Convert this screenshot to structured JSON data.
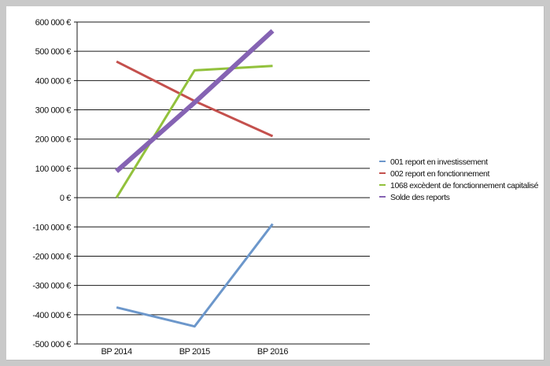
{
  "chart_data": {
    "type": "line",
    "title": "",
    "xlabel": "",
    "ylabel": "",
    "categories": [
      "BP 2014",
      "BP 2015",
      "BP 2016"
    ],
    "ylim": [
      -500000,
      600000
    ],
    "y_ticks": [
      600000,
      500000,
      400000,
      300000,
      200000,
      100000,
      0,
      -100000,
      -200000,
      -300000,
      -400000,
      -500000
    ],
    "y_tick_labels": [
      "600 000 €",
      "500 000 €",
      "400 000 €",
      "300 000 €",
      "200 000 €",
      "100 000 €",
      "0 €",
      "-100 000 €",
      "-200 000 €",
      "-300 000 €",
      "-400 000 €",
      "-500 000 €"
    ],
    "grid": "horizontal",
    "legend_position": "right",
    "series": [
      {
        "name": "001 report en investissement",
        "values": [
          -375000,
          -440000,
          -90000
        ],
        "color": "#6c97cb"
      },
      {
        "name": "002 report en fonctionnement",
        "values": [
          465000,
          330000,
          210000
        ],
        "color": "#c4504d"
      },
      {
        "name": "1068 excèdent de fonctionnement capitalisé",
        "values": [
          0,
          435000,
          450000
        ],
        "color": "#92c13c"
      },
      {
        "name": "Solde des reports",
        "values": [
          90000,
          325000,
          570000
        ],
        "color": "#8563b3"
      }
    ]
  }
}
